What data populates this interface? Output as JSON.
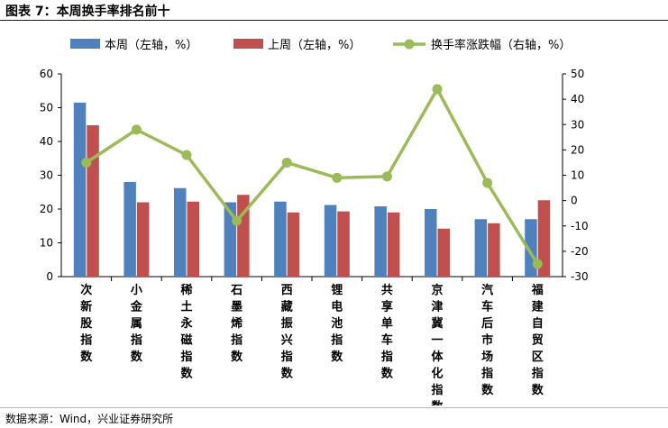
{
  "header": {
    "title": "图表 7：本周换手率排名前十"
  },
  "footer": {
    "source": "数据来源：Wind，兴业证券研究所"
  },
  "colors": {
    "this_week": "#4f81bd",
    "last_week": "#c0504d",
    "turnover_change": "#9bbb59"
  },
  "chart_data": {
    "type": "bar",
    "title": "",
    "categories": [
      "次新股指数",
      "小金属指数",
      "稀土永磁指数",
      "石墨烯指数",
      "西藏振兴指数",
      "锂电池指数",
      "共享单车指数",
      "京津冀一体化指数",
      "汽车后市场指数",
      "福建自贸区指数"
    ],
    "series": [
      {
        "name": "本周（左轴，%）",
        "type": "bar",
        "axis": "left",
        "values": [
          51.5,
          28.0,
          26.2,
          22.0,
          22.2,
          21.2,
          20.8,
          20.0,
          17.0,
          17.0
        ]
      },
      {
        "name": "上周（左轴，%）",
        "type": "bar",
        "axis": "left",
        "values": [
          44.8,
          22.0,
          22.2,
          24.2,
          19.0,
          19.3,
          19.0,
          14.2,
          15.8,
          22.6
        ]
      },
      {
        "name": "换手率涨跌幅（右轴，%）",
        "type": "line",
        "axis": "right",
        "values": [
          15.0,
          28.0,
          18.0,
          -8.0,
          15.0,
          9.0,
          9.5,
          44.0,
          7.0,
          -25.0
        ]
      }
    ],
    "left_axis": {
      "ylim": [
        0,
        60
      ],
      "ticks": [
        "0",
        "10",
        "20",
        "30",
        "40",
        "50",
        "60"
      ]
    },
    "right_axis": {
      "ylim": [
        -30,
        50
      ],
      "ticks": [
        "-30",
        "-20",
        "-10",
        "0",
        "10",
        "20",
        "30",
        "40",
        "50"
      ]
    },
    "legend_position": "top",
    "grid": false
  }
}
